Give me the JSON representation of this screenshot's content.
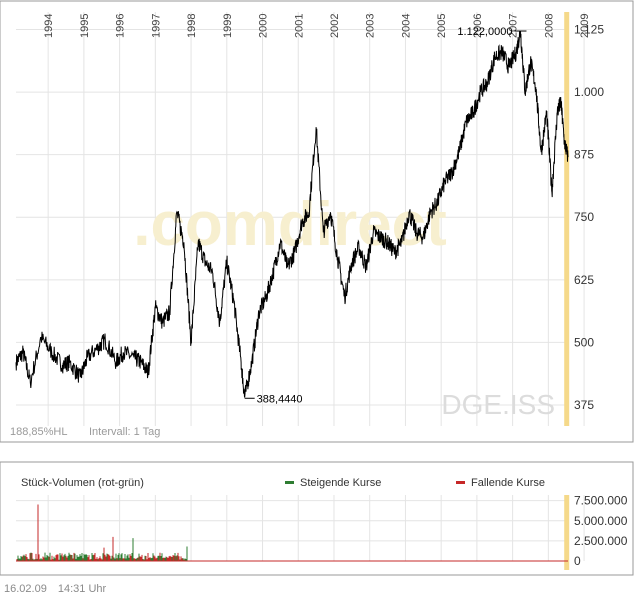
{
  "chart_data": [
    {
      "type": "line",
      "symbol": "DGE.ISS",
      "watermark": ".comdirect",
      "x_tick_labels": [
        "1994",
        "1995",
        "1996",
        "1997",
        "1998",
        "1999",
        "2000",
        "2001",
        "2002",
        "2003",
        "2004",
        "2005",
        "2006",
        "2007",
        "2008",
        "2009"
      ],
      "y_tick_labels": [
        "1.125",
        "1.000",
        "875",
        "750",
        "625",
        "500",
        "375"
      ],
      "y_ticks": [
        1125,
        1000,
        875,
        750,
        625,
        500,
        375
      ],
      "ylim": [
        333,
        1160
      ],
      "xlim": [
        1993.6,
        2009.05
      ],
      "grid": true,
      "range_text": "188,85%HL",
      "interval_text": "Intervall: 1 Tag",
      "max_label": "1.122,0000",
      "max_point": [
        2007.72,
        1122
      ],
      "min_label": "388,4440",
      "min_point": [
        2000.0,
        388.4
      ],
      "highlight_x": 2009.0,
      "highlight_color": "#f5d98a",
      "line_color": "#000000",
      "x": [
        1993.6,
        1993.8,
        1994.0,
        1994.3,
        1994.6,
        1994.9,
        1995.1,
        1995.4,
        1995.6,
        1995.9,
        1996.1,
        1996.4,
        1996.6,
        1996.9,
        1997.1,
        1997.3,
        1997.5,
        1997.7,
        1997.9,
        1998.1,
        1998.3,
        1998.5,
        1998.7,
        1998.9,
        1999.1,
        1999.3,
        1999.5,
        1999.7,
        1999.9,
        2000.0,
        2000.2,
        2000.4,
        2000.6,
        2000.8,
        2001.0,
        2001.2,
        2001.4,
        2001.6,
        2001.8,
        2002.0,
        2002.2,
        2002.4,
        2002.6,
        2002.8,
        2003.0,
        2003.2,
        2003.4,
        2003.6,
        2003.8,
        2004.0,
        2004.2,
        2004.4,
        2004.6,
        2004.8,
        2005.0,
        2005.2,
        2005.4,
        2005.6,
        2005.8,
        2006.0,
        2006.2,
        2006.4,
        2006.6,
        2006.8,
        2007.0,
        2007.2,
        2007.4,
        2007.6,
        2007.72,
        2007.85,
        2008.0,
        2008.15,
        2008.3,
        2008.45,
        2008.6,
        2008.75,
        2008.85,
        2008.95,
        2009.05
      ],
      "values": [
        460,
        480,
        420,
        510,
        480,
        455,
        460,
        430,
        470,
        490,
        505,
        460,
        480,
        470,
        460,
        440,
        570,
        540,
        560,
        760,
        700,
        500,
        700,
        660,
        640,
        540,
        660,
        580,
        460,
        390,
        460,
        560,
        590,
        640,
        700,
        650,
        680,
        740,
        760,
        930,
        720,
        760,
        670,
        590,
        660,
        690,
        650,
        720,
        710,
        700,
        680,
        700,
        760,
        720,
        710,
        760,
        780,
        820,
        840,
        880,
        940,
        960,
        1000,
        1020,
        1070,
        1080,
        1050,
        1080,
        1122,
        1000,
        1060,
        1010,
        880,
        960,
        800,
        960,
        980,
        900,
        870
      ]
    },
    {
      "type": "bar",
      "title": "Stück-Volumen (rot-grün)",
      "legend": [
        {
          "name": "Steigende Kurse",
          "color": "#2e7d32"
        },
        {
          "name": "Fallende Kurse",
          "color": "#c62828"
        }
      ],
      "y_tick_labels": [
        "7.500.000",
        "5.000.000",
        "2.500.000",
        "0"
      ],
      "y_ticks": [
        7500000,
        5000000,
        2500000,
        0
      ],
      "ylim": [
        0,
        8200000
      ],
      "x_range": [
        1993.6,
        2009.05
      ],
      "volume_end_x": 1998.4,
      "grid": true
    }
  ],
  "footer": {
    "date": "16.02.09",
    "time": "14:31 Uhr"
  }
}
